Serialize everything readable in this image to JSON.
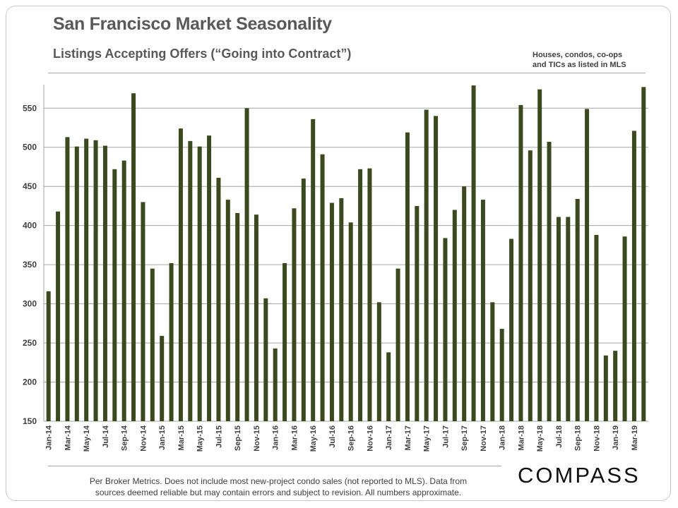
{
  "title": "San Francisco Market Seasonality",
  "subtitle": "Listings Accepting Offers (“Going into Contract”)",
  "note": [
    "Houses, condos, co-ops",
    "and TICs as listed in MLS"
  ],
  "footer": [
    "Per Broker Metrics. Does not include most new-project condo sales (not reported to MLS). Data from",
    "sources deemed reliable but may contain errors and subject to revision.  All numbers approximate."
  ],
  "logo": "COMPASS",
  "colors": {
    "bar": "#3a4a1e",
    "grid": "#a6a6a6",
    "axis_text": "#404040"
  },
  "chart_data": {
    "type": "bar",
    "title": "Listings Accepting Offers (“Going into Contract”)",
    "xlabel": "",
    "ylabel": "",
    "ylim": [
      150,
      580
    ],
    "yticks": [
      150,
      200,
      250,
      300,
      350,
      400,
      450,
      500,
      550
    ],
    "grid": true,
    "categories": [
      "Jan-14",
      "Feb-14",
      "Mar-14",
      "Apr-14",
      "May-14",
      "Jun-14",
      "Jul-14",
      "Aug-14",
      "Sep-14",
      "Oct-14",
      "Nov-14",
      "Dec-14",
      "Jan-15",
      "Feb-15",
      "Mar-15",
      "Apr-15",
      "May-15",
      "Jun-15",
      "Jul-15",
      "Aug-15",
      "Sep-15",
      "Oct-15",
      "Nov-15",
      "Dec-15",
      "Jan-16",
      "Feb-16",
      "Mar-16",
      "Apr-16",
      "May-16",
      "Jun-16",
      "Jul-16",
      "Aug-16",
      "Sep-16",
      "Oct-16",
      "Nov-16",
      "Dec-16",
      "Jan-17",
      "Feb-17",
      "Mar-17",
      "Apr-17",
      "May-17",
      "Jun-17",
      "Jul-17",
      "Aug-17",
      "Sep-17",
      "Oct-17",
      "Nov-17",
      "Dec-17",
      "Jan-18",
      "Feb-18",
      "Mar-18",
      "Apr-18",
      "May-18",
      "Jun-18",
      "Jul-18",
      "Aug-18",
      "Sep-18",
      "Oct-18",
      "Nov-18",
      "Dec-18",
      "Jan-19",
      "Feb-19",
      "Mar-19",
      "Apr-19"
    ],
    "tick_labels": [
      "Jan-14",
      "Mar-14",
      "May-14",
      "Jul-14",
      "Sep-14",
      "Nov-14",
      "Jan-15",
      "Mar-15",
      "May-15",
      "Jul-15",
      "Sep-15",
      "Nov-15",
      "Jan-16",
      "Mar-16",
      "May-16",
      "Jul-16",
      "Sep-16",
      "Nov-16",
      "Jan-17",
      "Mar-17",
      "May-17",
      "Jul-17",
      "Sep-17",
      "Nov-17",
      "Jan-18",
      "Mar-18",
      "May-18",
      "Jul-18",
      "Sep-18",
      "Nov-18",
      "Jan-19",
      "Mar-19"
    ],
    "values": [
      316,
      418,
      513,
      501,
      511,
      509,
      502,
      472,
      483,
      569,
      430,
      345,
      259,
      352,
      524,
      508,
      501,
      515,
      461,
      433,
      416,
      550,
      414,
      307,
      243,
      352,
      422,
      460,
      536,
      491,
      429,
      435,
      404,
      472,
      473,
      302,
      238,
      345,
      519,
      425,
      548,
      540,
      384,
      420,
      450,
      579,
      433,
      302,
      268,
      383,
      554,
      496,
      574,
      507,
      411,
      411,
      434,
      549,
      388,
      234,
      240,
      386,
      521,
      577
    ]
  }
}
